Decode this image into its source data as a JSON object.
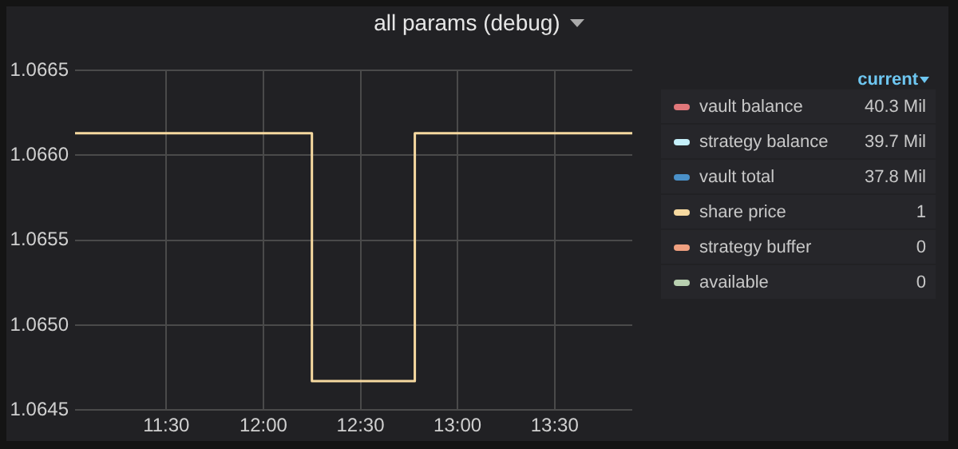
{
  "chart_data": {
    "type": "step",
    "title": "all params (debug)",
    "legend_title": "current",
    "xlim": [
      11.03,
      13.9
    ],
    "xticks": [
      {
        "value": 11.5,
        "label": "11:30"
      },
      {
        "value": 12,
        "label": "12:00"
      },
      {
        "value": 12.5,
        "label": "12:30"
      },
      {
        "value": 13,
        "label": "13:00"
      },
      {
        "value": 13.5,
        "label": "13:30"
      }
    ],
    "ylim": [
      1.0645,
      1.0665
    ],
    "yticks": [
      {
        "value": 1.0645,
        "label": "1.0645"
      },
      {
        "value": 1.065,
        "label": "1.0650"
      },
      {
        "value": 1.0655,
        "label": "1.0655"
      },
      {
        "value": 1.066,
        "label": "1.0660"
      },
      {
        "value": 1.0665,
        "label": "1.0665"
      }
    ],
    "x": [
      11.03,
      12.25,
      12.78,
      13.9
    ],
    "series": [
      {
        "name": "vault balance",
        "color": "#e0777a",
        "values": [
          null,
          null,
          null,
          null
        ]
      },
      {
        "name": "strategy balance",
        "color": "#c5f0fa",
        "values": [
          null,
          null,
          null,
          null
        ]
      },
      {
        "name": "vault total",
        "color": "#4a90c8",
        "values": [
          null,
          null,
          null,
          null
        ]
      },
      {
        "name": "share price",
        "color": "#f6d9a0",
        "values": [
          1.06613,
          1.06467,
          1.06613,
          1.06613
        ]
      },
      {
        "name": "strategy buffer",
        "color": "#f0a080",
        "values": [
          null,
          null,
          null,
          null
        ]
      },
      {
        "name": "available",
        "color": "#b8d0b0",
        "values": [
          null,
          null,
          null,
          null
        ]
      }
    ],
    "annotations": [
      "40.3 Mil",
      "39.7 Mil",
      "37.8 Mil",
      "1",
      "0",
      "0"
    ],
    "grid": true,
    "legend": "right",
    "marker": "none",
    "line_style": "solid"
  }
}
